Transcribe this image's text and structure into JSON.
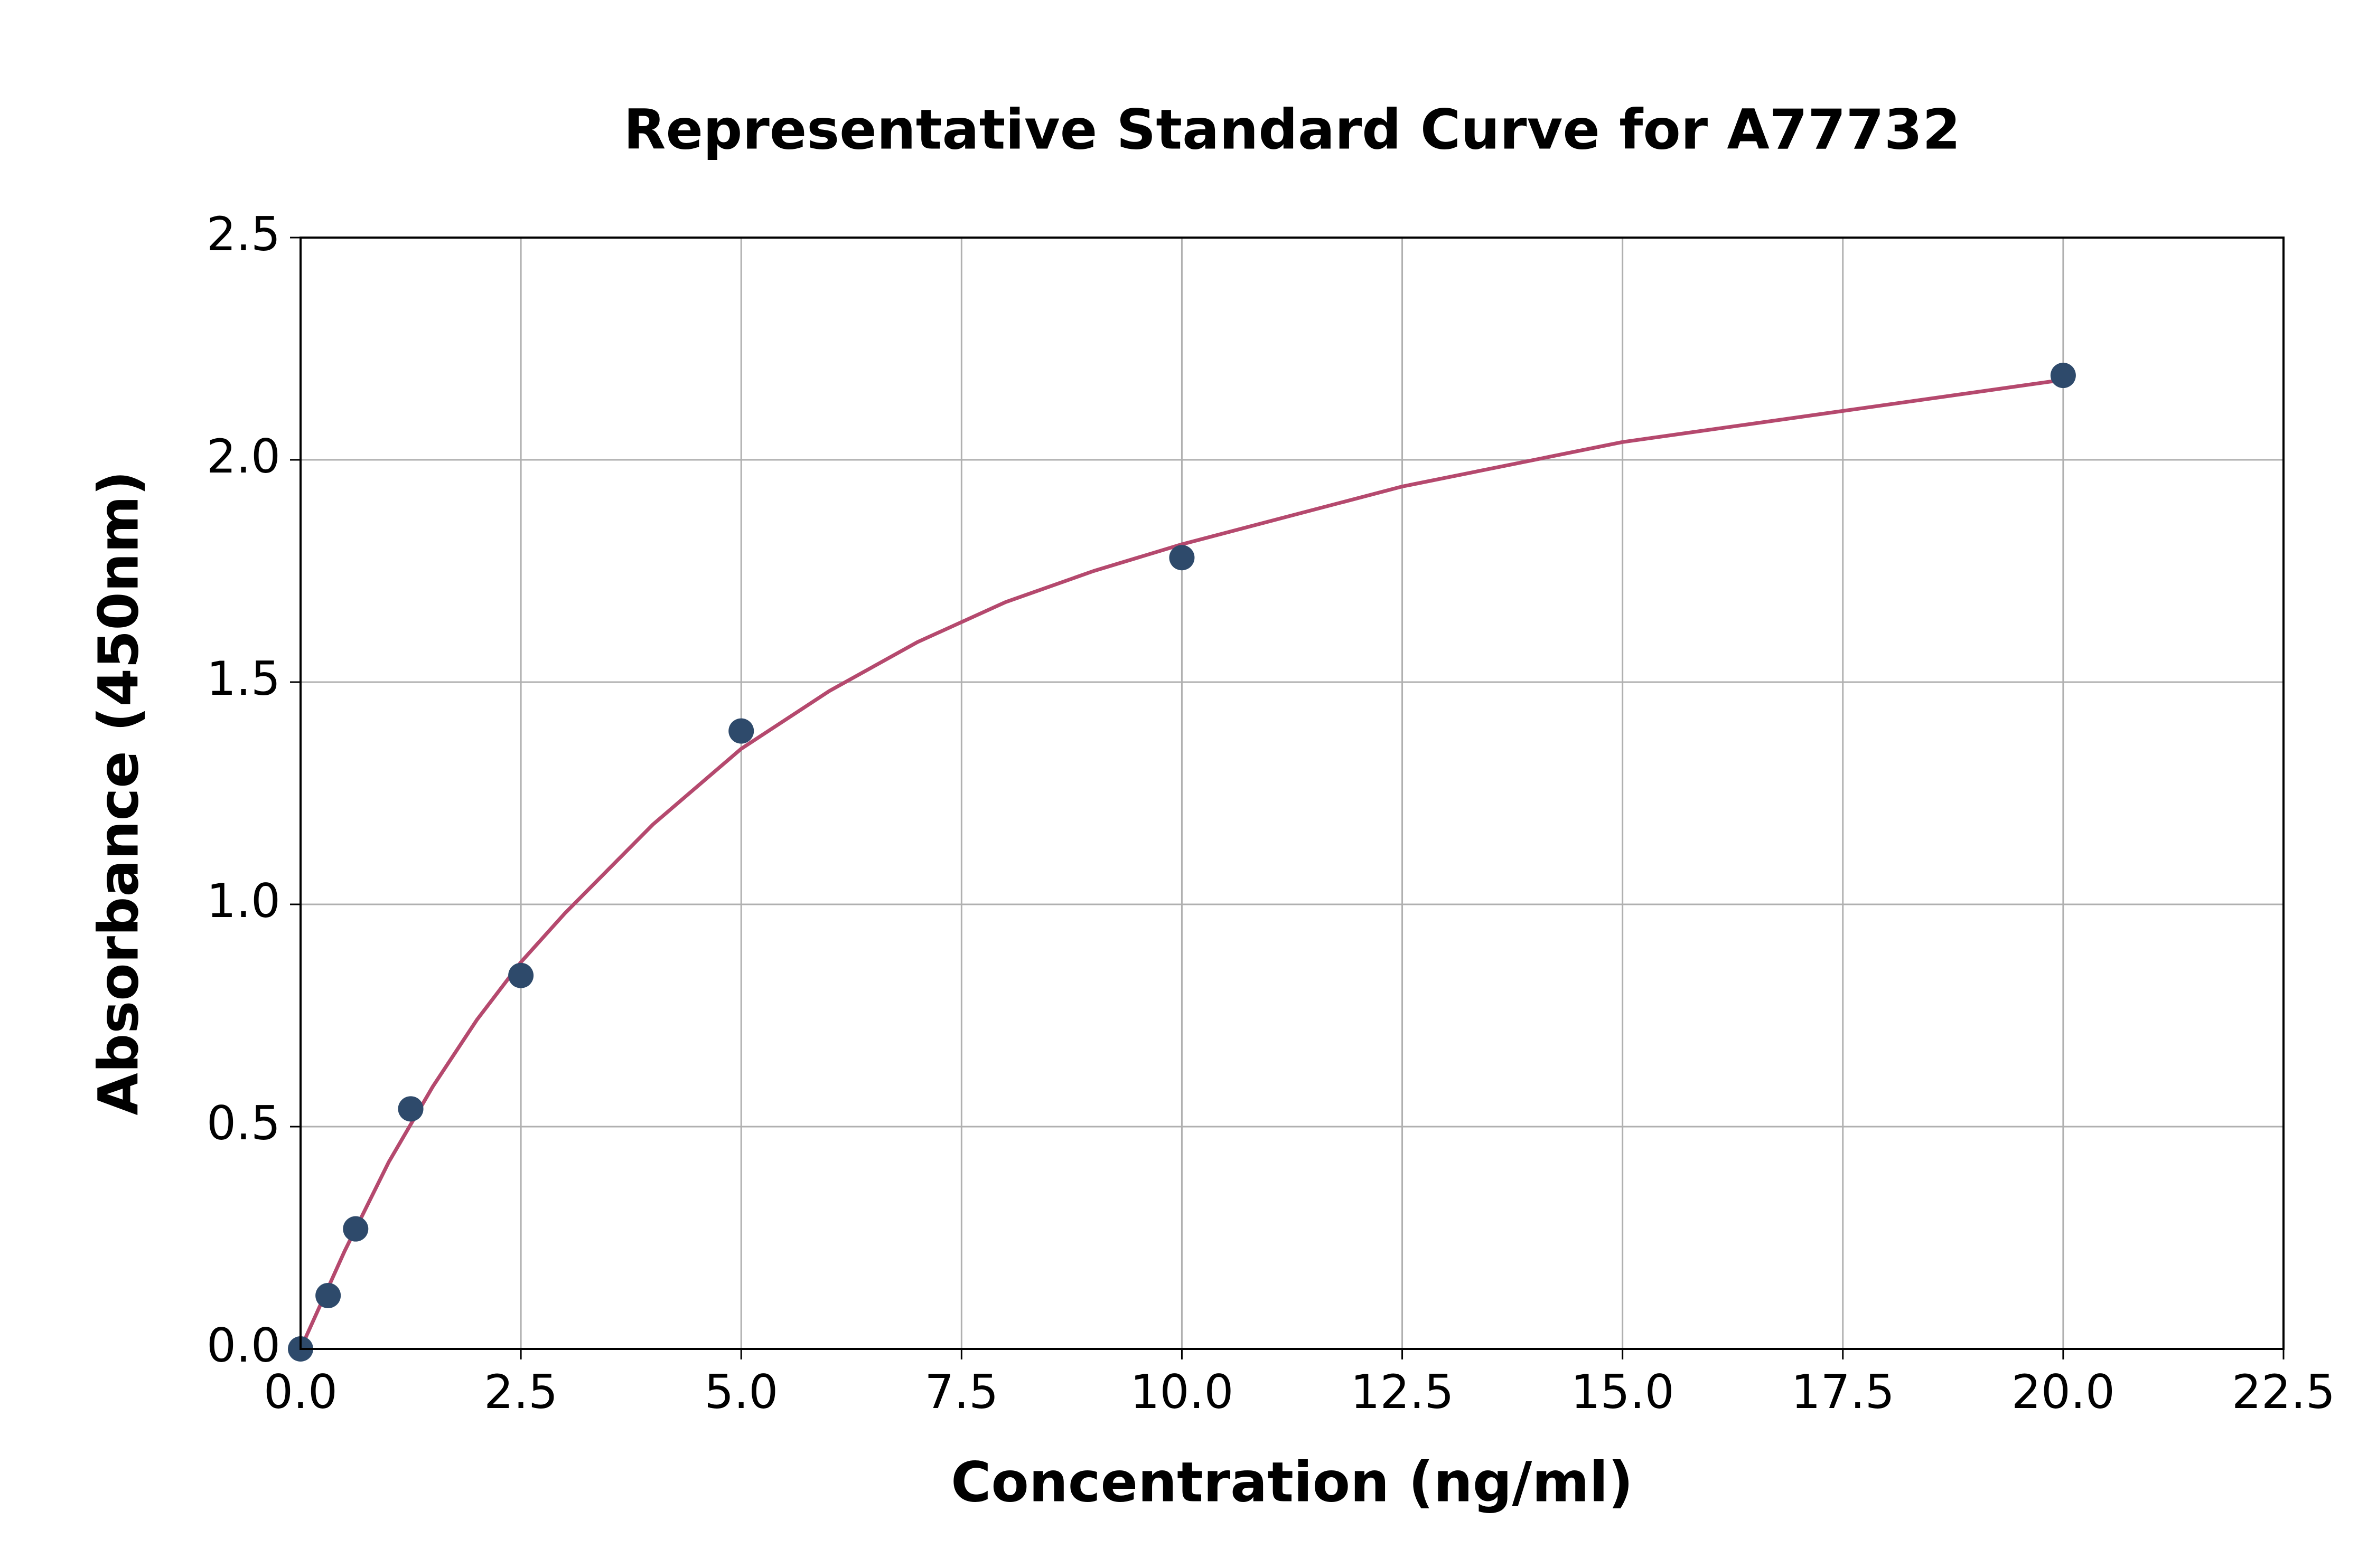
{
  "chart_data": {
    "type": "scatter",
    "title": "Representative Standard Curve for A77732",
    "x_label": "Concentration (ng/ml)",
    "y_label": "Absorbance (450nm)",
    "xlim": [
      0,
      22.5
    ],
    "ylim": [
      0,
      2.5
    ],
    "xticks": [
      {
        "value": 0,
        "label": "0.0"
      },
      2.5,
      {
        "value": 5,
        "label": "5.0"
      },
      7.5,
      {
        "value": 10,
        "label": "10.0"
      },
      12.5,
      {
        "value": 15,
        "label": "15.0"
      },
      17.5,
      {
        "value": 20,
        "label": "20.0"
      },
      22.5
    ],
    "yticks": [
      {
        "value": 0,
        "label": "0.0"
      },
      0.5,
      {
        "value": 1,
        "label": "1.0"
      },
      1.5,
      {
        "value": 2,
        "label": "2.0"
      },
      2.5
    ],
    "grid": true,
    "points": {
      "color": "#2e4a6b",
      "x": [
        0,
        0.3125,
        0.625,
        1.25,
        2.5,
        5,
        10,
        20
      ],
      "values": [
        0,
        0.12,
        0.27,
        0.54,
        0.84,
        1.39,
        1.78,
        2.19
      ]
    },
    "curve": {
      "color": "#b5496e",
      "x": [
        0,
        0.25,
        0.5,
        0.75,
        1,
        1.5,
        2,
        2.5,
        3,
        4,
        5,
        6,
        7,
        8,
        9,
        10,
        12.5,
        15,
        17.5,
        20
      ],
      "values": [
        0,
        0.11,
        0.22,
        0.32,
        0.42,
        0.59,
        0.74,
        0.87,
        0.98,
        1.18,
        1.35,
        1.48,
        1.59,
        1.68,
        1.75,
        1.81,
        1.94,
        2.04,
        2.11,
        2.18
      ]
    }
  }
}
